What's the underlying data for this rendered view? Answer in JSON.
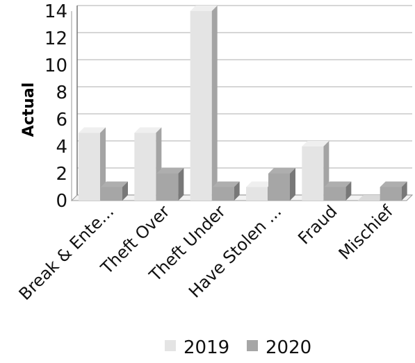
{
  "chart_data": {
    "type": "bar",
    "ylabel": "Actual",
    "categories": [
      "Break & Ente...",
      "Theft Over",
      "Theft Under",
      "Have Stolen ...",
      "Fraud",
      "Mischief"
    ],
    "series": [
      {
        "name": "2019",
        "values": [
          5,
          5,
          14,
          1,
          4,
          0
        ],
        "color": "#e4e4e4"
      },
      {
        "name": "2020",
        "values": [
          1,
          2,
          1,
          2,
          1,
          1
        ],
        "color": "#a6a6a6"
      }
    ],
    "ylim": [
      0,
      14
    ],
    "yticks": [
      0,
      2,
      4,
      6,
      8,
      10,
      12,
      14
    ],
    "grid": true,
    "legend": "bottom"
  }
}
